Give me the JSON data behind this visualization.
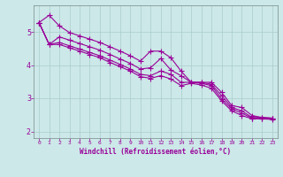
{
  "title": "",
  "xlabel": "Windchill (Refroidissement éolien,°C)",
  "ylabel": "",
  "background_color": "#cce8e8",
  "grid_color": "#aacccc",
  "line_color": "#990099",
  "xlim": [
    -0.5,
    23.5
  ],
  "ylim": [
    1.8,
    5.8
  ],
  "xticks": [
    0,
    1,
    2,
    3,
    4,
    5,
    6,
    7,
    8,
    9,
    10,
    11,
    12,
    13,
    14,
    15,
    16,
    17,
    18,
    19,
    20,
    21,
    22,
    23
  ],
  "yticks": [
    2,
    3,
    4,
    5
  ],
  "series": [
    {
      "x": [
        0,
        1,
        2,
        3,
        4,
        5,
        6,
        7,
        8,
        9,
        10,
        11,
        12,
        13,
        14,
        15,
        16,
        17,
        18,
        19,
        20,
        21,
        22,
        23
      ],
      "y": [
        5.28,
        5.5,
        5.18,
        4.98,
        4.88,
        4.78,
        4.68,
        4.55,
        4.42,
        4.28,
        4.12,
        4.42,
        4.42,
        4.22,
        3.82,
        3.48,
        3.48,
        3.48,
        3.18,
        2.78,
        2.72,
        2.48,
        2.42,
        2.4
      ]
    },
    {
      "x": [
        0,
        1,
        2,
        3,
        4,
        5,
        6,
        7,
        8,
        9,
        10,
        11,
        12,
        13,
        14,
        15,
        16,
        17,
        18,
        19,
        20,
        21,
        22,
        23
      ],
      "y": [
        5.28,
        4.62,
        4.85,
        4.75,
        4.65,
        4.55,
        4.45,
        4.32,
        4.18,
        4.05,
        3.88,
        3.92,
        4.2,
        3.85,
        3.68,
        3.48,
        3.48,
        3.42,
        3.08,
        2.72,
        2.62,
        2.42,
        2.42,
        2.4
      ]
    },
    {
      "x": [
        0,
        1,
        2,
        3,
        4,
        5,
        6,
        7,
        8,
        9,
        10,
        11,
        12,
        13,
        14,
        15,
        16,
        17,
        18,
        19,
        20,
        21,
        22,
        23
      ],
      "y": [
        5.28,
        4.62,
        4.68,
        4.58,
        4.48,
        4.38,
        4.28,
        4.15,
        4.02,
        3.88,
        3.72,
        3.68,
        3.82,
        3.72,
        3.48,
        3.48,
        3.45,
        3.38,
        2.98,
        2.68,
        2.55,
        2.4,
        2.4,
        2.38
      ]
    },
    {
      "x": [
        0,
        1,
        2,
        3,
        4,
        5,
        6,
        7,
        8,
        9,
        10,
        11,
        12,
        13,
        14,
        15,
        16,
        17,
        18,
        19,
        20,
        21,
        22,
        23
      ],
      "y": [
        5.28,
        4.62,
        4.62,
        4.52,
        4.42,
        4.32,
        4.22,
        4.08,
        3.95,
        3.82,
        3.65,
        3.6,
        3.68,
        3.58,
        3.38,
        3.45,
        3.4,
        3.3,
        2.92,
        2.62,
        2.48,
        2.38,
        2.38,
        2.36
      ]
    }
  ],
  "marker": "+",
  "markersize": 4,
  "linewidth": 0.8
}
